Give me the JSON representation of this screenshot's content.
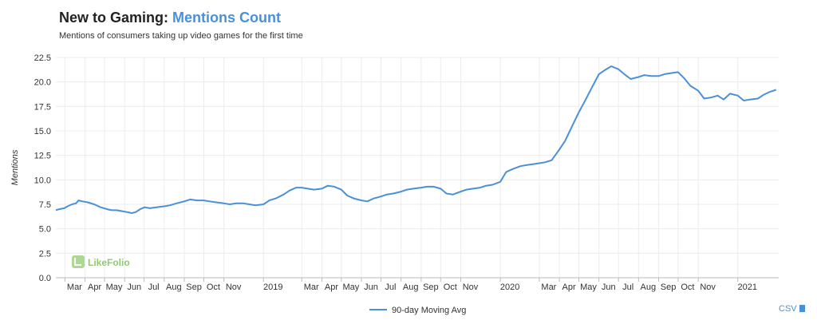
{
  "title_main": "New to Gaming:",
  "title_accent": "Mentions Count",
  "subtitle": "Mentions of consumers taking up video games for the first time",
  "csv_label": "CSV",
  "logo_label": "LikeFolio",
  "colors": {
    "line": "#4a90d9",
    "grid": "#ececec",
    "logo": "#7fbf5a"
  },
  "chart_data": {
    "type": "line",
    "title": "New to Gaming: Mentions Count",
    "subtitle": "Mentions of consumers taking up video games for the first time",
    "ylabel": "Mentions",
    "xlabel": "",
    "ylim": [
      0,
      22.5
    ],
    "yticks": [
      "0.0",
      "2.5",
      "5.0",
      "7.5",
      "10.0",
      "12.5",
      "15.0",
      "17.5",
      "20.0",
      "22.5"
    ],
    "xlim": [
      "2018-02-15",
      "2021-03-05"
    ],
    "xticks": [
      {
        "label": "Mar",
        "date": "2018-03-01"
      },
      {
        "label": "Apr",
        "date": "2018-04-01"
      },
      {
        "label": "May",
        "date": "2018-05-01"
      },
      {
        "label": "Jun",
        "date": "2018-06-01"
      },
      {
        "label": "Jul",
        "date": "2018-07-01"
      },
      {
        "label": "Aug",
        "date": "2018-08-01"
      },
      {
        "label": "Sep",
        "date": "2018-09-01"
      },
      {
        "label": "Oct",
        "date": "2018-10-01"
      },
      {
        "label": "Nov",
        "date": "2018-11-01"
      },
      {
        "label": "2019",
        "date": "2019-01-01"
      },
      {
        "label": "Mar",
        "date": "2019-03-01"
      },
      {
        "label": "Apr",
        "date": "2019-04-01"
      },
      {
        "label": "May",
        "date": "2019-05-01"
      },
      {
        "label": "Jun",
        "date": "2019-06-01"
      },
      {
        "label": "Jul",
        "date": "2019-07-01"
      },
      {
        "label": "Aug",
        "date": "2019-08-01"
      },
      {
        "label": "Sep",
        "date": "2019-09-01"
      },
      {
        "label": "Oct",
        "date": "2019-10-01"
      },
      {
        "label": "Nov",
        "date": "2019-11-01"
      },
      {
        "label": "2020",
        "date": "2020-01-01"
      },
      {
        "label": "Mar",
        "date": "2020-03-01"
      },
      {
        "label": "Apr",
        "date": "2020-04-01"
      },
      {
        "label": "May",
        "date": "2020-05-01"
      },
      {
        "label": "Jun",
        "date": "2020-06-01"
      },
      {
        "label": "Jul",
        "date": "2020-07-01"
      },
      {
        "label": "Aug",
        "date": "2020-08-01"
      },
      {
        "label": "Sep",
        "date": "2020-09-01"
      },
      {
        "label": "Oct",
        "date": "2020-10-01"
      },
      {
        "label": "Nov",
        "date": "2020-11-01"
      },
      {
        "label": "2021",
        "date": "2021-01-01"
      }
    ],
    "grid": true,
    "legend_placement": "bottom-center",
    "series": [
      {
        "name": "90-day Moving Avg",
        "x": [
          "2018-02-15",
          "2018-02-20",
          "2018-02-28",
          "2018-03-05",
          "2018-03-12",
          "2018-03-18",
          "2018-03-22",
          "2018-03-28",
          "2018-04-05",
          "2018-04-15",
          "2018-04-25",
          "2018-05-05",
          "2018-05-12",
          "2018-05-20",
          "2018-05-28",
          "2018-06-05",
          "2018-06-12",
          "2018-06-18",
          "2018-06-25",
          "2018-07-02",
          "2018-07-10",
          "2018-07-20",
          "2018-08-01",
          "2018-08-10",
          "2018-08-20",
          "2018-09-01",
          "2018-09-10",
          "2018-09-20",
          "2018-10-01",
          "2018-10-10",
          "2018-10-20",
          "2018-11-01",
          "2018-11-10",
          "2018-11-20",
          "2018-12-01",
          "2018-12-10",
          "2018-12-20",
          "2019-01-01",
          "2019-01-10",
          "2019-01-20",
          "2019-02-01",
          "2019-02-10",
          "2019-02-20",
          "2019-03-01",
          "2019-03-10",
          "2019-03-20",
          "2019-04-01",
          "2019-04-10",
          "2019-04-20",
          "2019-05-01",
          "2019-05-10",
          "2019-05-20",
          "2019-06-01",
          "2019-06-10",
          "2019-06-20",
          "2019-07-01",
          "2019-07-10",
          "2019-07-20",
          "2019-08-01",
          "2019-08-10",
          "2019-08-20",
          "2019-09-01",
          "2019-09-10",
          "2019-09-20",
          "2019-10-01",
          "2019-10-10",
          "2019-10-20",
          "2019-11-01",
          "2019-11-10",
          "2019-11-20",
          "2019-12-01",
          "2019-12-10",
          "2019-12-20",
          "2020-01-01",
          "2020-01-10",
          "2020-01-20",
          "2020-02-01",
          "2020-02-10",
          "2020-02-20",
          "2020-03-01",
          "2020-03-10",
          "2020-03-20",
          "2020-04-01",
          "2020-04-10",
          "2020-04-20",
          "2020-05-01",
          "2020-05-10",
          "2020-05-20",
          "2020-06-01",
          "2020-06-10",
          "2020-06-20",
          "2020-07-01",
          "2020-07-10",
          "2020-07-20",
          "2020-08-01",
          "2020-08-10",
          "2020-08-20",
          "2020-09-01",
          "2020-09-10",
          "2020-09-20",
          "2020-10-01",
          "2020-10-10",
          "2020-10-20",
          "2020-11-01",
          "2020-11-10",
          "2020-11-20",
          "2020-12-01",
          "2020-12-10",
          "2020-12-20",
          "2021-01-01",
          "2021-01-10",
          "2021-01-20",
          "2021-02-01",
          "2021-02-10",
          "2021-02-20",
          "2021-03-01"
        ],
        "y": [
          6.9,
          7.0,
          7.1,
          7.3,
          7.5,
          7.6,
          7.9,
          7.8,
          7.7,
          7.5,
          7.2,
          7.0,
          6.9,
          6.9,
          6.8,
          6.7,
          6.6,
          6.7,
          7.0,
          7.2,
          7.1,
          7.2,
          7.3,
          7.4,
          7.6,
          7.8,
          8.0,
          7.9,
          7.9,
          7.8,
          7.7,
          7.6,
          7.5,
          7.6,
          7.6,
          7.5,
          7.4,
          7.5,
          7.9,
          8.1,
          8.5,
          8.9,
          9.2,
          9.2,
          9.1,
          9.0,
          9.1,
          9.4,
          9.3,
          9.0,
          8.4,
          8.1,
          7.9,
          7.8,
          8.1,
          8.3,
          8.5,
          8.6,
          8.8,
          9.0,
          9.1,
          9.2,
          9.3,
          9.3,
          9.1,
          8.6,
          8.5,
          8.8,
          9.0,
          9.1,
          9.2,
          9.4,
          9.5,
          9.8,
          10.8,
          11.1,
          11.4,
          11.5,
          11.6,
          11.7,
          11.8,
          12.0,
          13.1,
          14.0,
          15.4,
          16.9,
          18.0,
          19.3,
          20.8,
          21.2,
          21.6,
          21.3,
          20.8,
          20.3,
          20.5,
          20.7,
          20.6,
          20.6,
          20.8,
          20.9,
          21.0,
          20.4,
          19.6,
          19.1,
          18.3,
          18.4,
          18.6,
          18.2,
          18.8,
          18.6,
          18.1,
          18.2,
          18.3,
          18.7,
          19.0,
          19.2
        ]
      }
    ]
  }
}
